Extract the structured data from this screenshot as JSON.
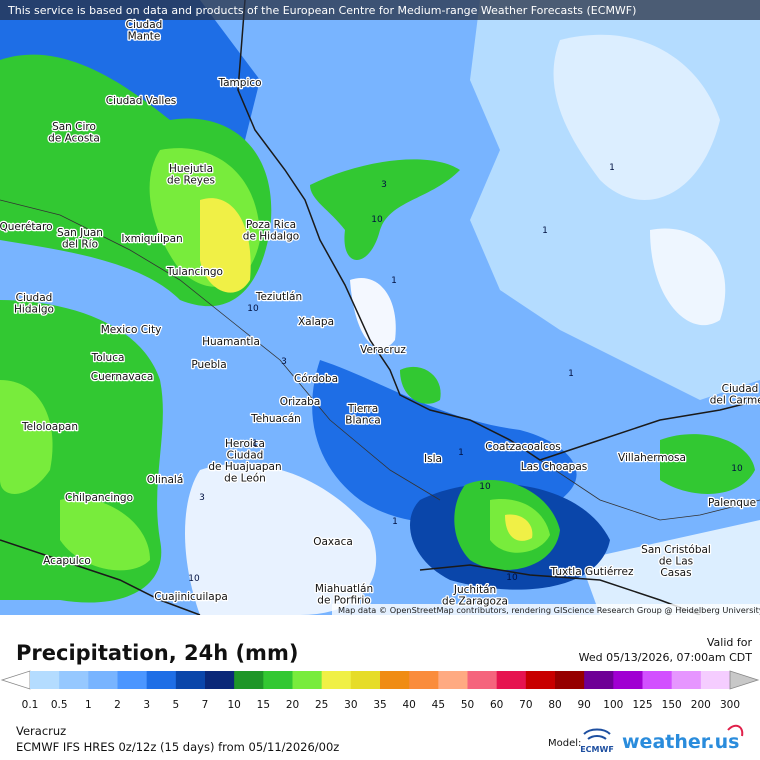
{
  "notice": "This service is based on data and products of the European Centre for Medium-range Weather Forecasts (ECMWF)",
  "map": {
    "places": [
      [
        "Ciudad",
        "Mante"
      ],
      [
        "Tampico"
      ],
      [
        "Ciudad Valles"
      ],
      [
        "San Ciro",
        "de Acosta"
      ],
      [
        "Huejutla",
        "de Reyes"
      ],
      [
        "Poza Rica",
        "de Hidalgo"
      ],
      [
        "Ixmiquilpan"
      ],
      [
        "San Juan",
        "del Río"
      ],
      [
        "Querétaro"
      ],
      [
        "Tulancingo"
      ],
      [
        "Teziutlán"
      ],
      [
        "Xalapa"
      ],
      [
        "Ciudad",
        "Hidalgo"
      ],
      [
        "Mexico City"
      ],
      [
        "Huamantla"
      ],
      [
        "Toluca"
      ],
      [
        "Puebla"
      ],
      [
        "Cuernavaca"
      ],
      [
        "Córdoba"
      ],
      [
        "Orizaba"
      ],
      [
        "Veracruz"
      ],
      [
        "Tierra",
        "Blanca"
      ],
      [
        "Tehuacán"
      ],
      [
        "Teloloapan"
      ],
      [
        "Heroica",
        "Ciudad",
        "de Huajuapan",
        "de León"
      ],
      [
        "Olinalá"
      ],
      [
        "Isla"
      ],
      [
        "Coatzacoalcos"
      ],
      [
        "Las Choapas"
      ],
      [
        "Villahermosa"
      ],
      [
        "Ciudad",
        "del Carmen"
      ],
      [
        "Palenque"
      ],
      [
        "Chilpancingo"
      ],
      [
        "Oaxaca"
      ],
      [
        "Acapulco"
      ],
      [
        "Cuajinicuilapa"
      ],
      [
        "Miahuatlán",
        "de Porfirio"
      ],
      [
        "Juchitán",
        "de Zaragoza"
      ],
      [
        "Tuxtla Gutiérrez"
      ],
      [
        "San Cristóbal",
        "de Las",
        "Casas"
      ]
    ],
    "contour_labels": [
      1,
      3,
      10,
      1,
      1,
      1,
      1,
      10,
      1,
      10,
      3,
      10,
      1,
      3,
      10,
      10
    ],
    "attribution": "Map data © OpenStreetMap contributors, rendering GIScience Research Group @ Heidelberg University"
  },
  "legend": {
    "title": "Precipitation, 24h (mm)",
    "valid_label": "Valid for",
    "valid_time": "Wed 05/13/2026, 07:00am CDT",
    "levels": [
      0.1,
      0.5,
      1,
      2,
      3,
      5,
      7,
      10,
      15,
      20,
      25,
      30,
      35,
      40,
      45,
      50,
      60,
      70,
      80,
      90,
      100,
      125,
      150,
      200,
      300
    ],
    "colors": [
      "#b4dcff",
      "#96c8ff",
      "#78b4ff",
      "#4b96ff",
      "#1e6ee6",
      "#0a46aa",
      "#0a2878",
      "#1e9628",
      "#32c832",
      "#78ec3c",
      "#f0f046",
      "#e6dc28",
      "#f08c14",
      "#fa8c3c",
      "#ffaa82",
      "#f5647d",
      "#e61450",
      "#c80000",
      "#960000",
      "#6e0096",
      "#a000d2",
      "#d250ff",
      "#e696ff",
      "#f5cdff"
    ],
    "low_color": "#ffffff",
    "high_color": "#c8c8c8"
  },
  "footer": {
    "location": "Veracruz",
    "model_run": "ECMWF IFS HRES 0z/12z (15 days) from  05/11/2026/00z",
    "model_label": "Model:",
    "model_logo": "ECMWF",
    "brand": "weather.us"
  }
}
